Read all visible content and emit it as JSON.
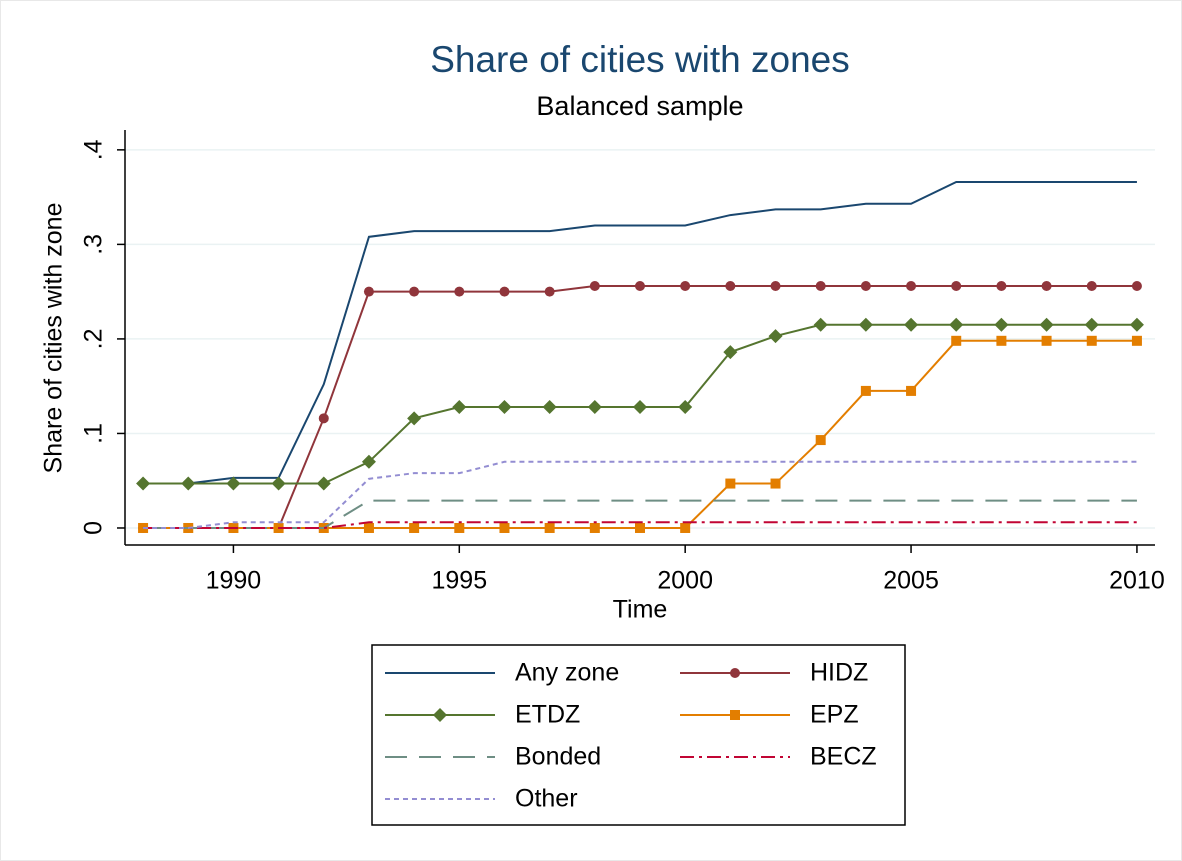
{
  "chart_data": {
    "type": "line",
    "title": "Share of cities with zones",
    "subtitle": "Balanced sample",
    "x_label": "Time",
    "y_label": "Share of cities with zone",
    "x": [
      1988,
      1989,
      1990,
      1991,
      1992,
      1993,
      1994,
      1995,
      1996,
      1997,
      1998,
      1999,
      2000,
      2001,
      2002,
      2003,
      2004,
      2005,
      2006,
      2007,
      2008,
      2009,
      2010
    ],
    "series": [
      {
        "name": "Any zone",
        "color": "#1a476f",
        "dash": "solid",
        "marker": "none",
        "values": [
          0.047,
          0.047,
          0.053,
          0.053,
          0.152,
          0.308,
          0.314,
          0.314,
          0.314,
          0.314,
          0.32,
          0.32,
          0.32,
          0.331,
          0.337,
          0.337,
          0.343,
          0.343,
          0.366,
          0.366,
          0.366,
          0.366,
          0.366
        ]
      },
      {
        "name": "HIDZ",
        "color": "#90353b",
        "dash": "solid",
        "marker": "circle",
        "values": [
          0,
          0,
          0,
          0,
          0.116,
          0.25,
          0.25,
          0.25,
          0.25,
          0.25,
          0.256,
          0.256,
          0.256,
          0.256,
          0.256,
          0.256,
          0.256,
          0.256,
          0.256,
          0.256,
          0.256,
          0.256,
          0.256
        ]
      },
      {
        "name": "ETDZ",
        "color": "#55752f",
        "dash": "solid",
        "marker": "diamond",
        "values": [
          0.047,
          0.047,
          0.047,
          0.047,
          0.047,
          0.07,
          0.116,
          0.128,
          0.128,
          0.128,
          0.128,
          0.128,
          0.128,
          0.186,
          0.203,
          0.215,
          0.215,
          0.215,
          0.215,
          0.215,
          0.215,
          0.215,
          0.215
        ]
      },
      {
        "name": "EPZ",
        "color": "#e37e00",
        "dash": "solid",
        "marker": "square",
        "values": [
          0,
          0,
          0,
          0,
          0,
          0,
          0,
          0,
          0,
          0,
          0,
          0,
          0,
          0.047,
          0.047,
          0.093,
          0.145,
          0.145,
          0.198,
          0.198,
          0.198,
          0.198,
          0.198
        ]
      },
      {
        "name": "Bonded",
        "color": "#6e8e84",
        "dash": "long",
        "marker": "none",
        "values": [
          0,
          0,
          0,
          0,
          0,
          0.029,
          0.029,
          0.029,
          0.029,
          0.029,
          0.029,
          0.029,
          0.029,
          0.029,
          0.029,
          0.029,
          0.029,
          0.029,
          0.029,
          0.029,
          0.029,
          0.029,
          0.029
        ]
      },
      {
        "name": "BECZ",
        "color": "#c10534",
        "dash": "dashdot",
        "marker": "none",
        "values": [
          0,
          0,
          0,
          0,
          0,
          0.006,
          0.006,
          0.006,
          0.006,
          0.006,
          0.006,
          0.006,
          0.006,
          0.006,
          0.006,
          0.006,
          0.006,
          0.006,
          0.006,
          0.006,
          0.006,
          0.006,
          0.006
        ]
      },
      {
        "name": "Other",
        "color": "#938dd2",
        "dash": "dot",
        "marker": "none",
        "values": [
          0,
          0,
          0.006,
          0.006,
          0.006,
          0.052,
          0.058,
          0.058,
          0.07,
          0.07,
          0.07,
          0.07,
          0.07,
          0.07,
          0.07,
          0.07,
          0.07,
          0.07,
          0.07,
          0.07,
          0.07,
          0.07,
          0.07
        ]
      }
    ],
    "xlim": [
      1987.6,
      2010.4
    ],
    "ylim": [
      -0.018,
      0.421
    ],
    "xticks": [
      1990,
      1995,
      2000,
      2005,
      2010
    ],
    "yticks": [
      0,
      {
        "value": 0.1,
        "label": ".1"
      },
      {
        "value": 0.2,
        "label": ".2"
      },
      {
        "value": 0.3,
        "label": ".3"
      },
      {
        "value": 0.4,
        "label": ".4"
      }
    ],
    "grid": true,
    "legend": "bottom"
  }
}
